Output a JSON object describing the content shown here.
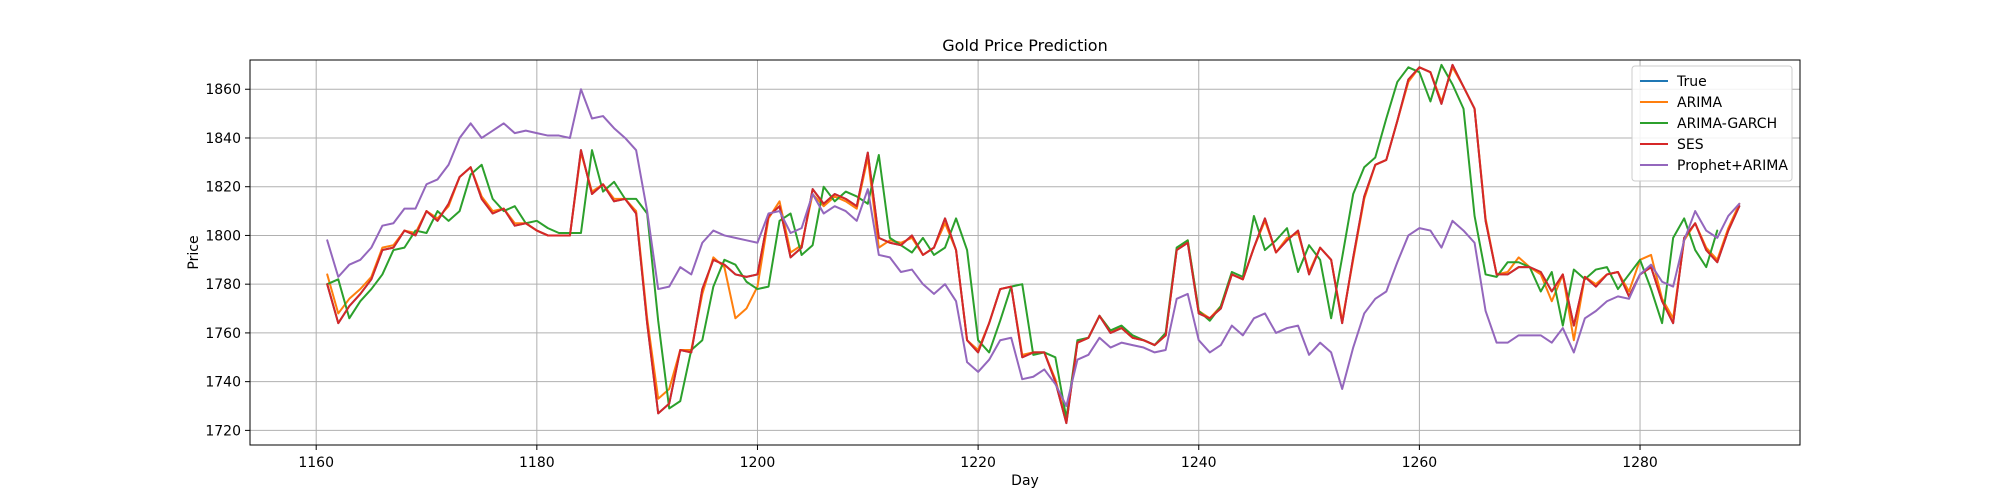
{
  "chart_data": {
    "type": "line",
    "title": "Gold Price Prediction",
    "xlabel": "Day",
    "ylabel": "Price",
    "xlim": [
      1154,
      1294.5
    ],
    "ylim": [
      1714,
      1872
    ],
    "x_ticks": [
      1160,
      1180,
      1200,
      1220,
      1240,
      1260,
      1280
    ],
    "y_ticks": [
      1720,
      1740,
      1760,
      1780,
      1800,
      1820,
      1840,
      1860
    ],
    "grid": true,
    "legend_position": "top-right",
    "x_start": 1161,
    "series": [
      {
        "name": "True",
        "color": "#1f77b4",
        "values": [
          1780,
          1764,
          1771,
          1776,
          1782,
          1794,
          1795,
          1802,
          1800,
          1810,
          1806,
          1813,
          1824,
          1828,
          1815,
          1809,
          1811,
          1804,
          1805,
          1802,
          1800,
          1800,
          1800,
          1835,
          1817,
          1821,
          1814,
          1815,
          1809,
          1764,
          1727,
          1731,
          1753,
          1752,
          1778,
          1790,
          1788,
          1784,
          1783,
          1784,
          1808,
          1812,
          1791,
          1795,
          1819,
          1813,
          1817,
          1815,
          1812,
          1834,
          1799,
          1797,
          1796,
          1800,
          1792,
          1795,
          1807,
          1794,
          1757,
          1752,
          1764,
          1778,
          1779,
          1750,
          1752,
          1752,
          1740,
          1723,
          1756,
          1758,
          1767,
          1760,
          1762,
          1758,
          1757,
          1755,
          1759,
          1794,
          1797,
          1768,
          1766,
          1770,
          1784,
          1782,
          1795,
          1807,
          1793,
          1798,
          1802,
          1784,
          1795,
          1790,
          1764,
          1791,
          1816,
          1829,
          1831,
          1847,
          1864,
          1869,
          1867,
          1854,
          1870,
          1861,
          1852,
          1806,
          1784,
          1784,
          1787,
          1787,
          1785,
          1777,
          1784,
          1763,
          1783,
          1779,
          1784,
          1785,
          1775,
          1784,
          1787,
          1773,
          1764,
          1799,
          1805,
          1794,
          1789,
          1802,
          1812
        ]
      },
      {
        "name": "ARIMA",
        "color": "#ff7f0e",
        "values": [
          1784,
          1768,
          1774,
          1778,
          1783,
          1795,
          1796,
          1802,
          1801,
          1810,
          1807,
          1812,
          1824,
          1828,
          1816,
          1810,
          1811,
          1805,
          1805,
          1802,
          1800,
          1800,
          1800,
          1834,
          1818,
          1821,
          1815,
          1815,
          1810,
          1766,
          1733,
          1737,
          1753,
          1753,
          1776,
          1791,
          1787,
          1766,
          1770,
          1779,
          1807,
          1814,
          1793,
          1796,
          1817,
          1812,
          1816,
          1814,
          1811,
          1832,
          1795,
          1798,
          1797,
          1799,
          1792,
          1795,
          1805,
          1794,
          1757,
          1753,
          1764,
          1778,
          1779,
          1751,
          1752,
          1752,
          1741,
          1724,
          1756,
          1758,
          1767,
          1761,
          1762,
          1758,
          1757,
          1755,
          1759,
          1794,
          1798,
          1769,
          1766,
          1771,
          1784,
          1782,
          1795,
          1806,
          1793,
          1799,
          1801,
          1785,
          1795,
          1790,
          1765,
          1790,
          1815,
          1829,
          1831,
          1847,
          1863,
          1869,
          1867,
          1855,
          1869,
          1861,
          1852,
          1807,
          1784,
          1785,
          1791,
          1787,
          1784,
          1773,
          1784,
          1757,
          1783,
          1780,
          1784,
          1785,
          1777,
          1790,
          1792,
          1774,
          1766,
          1798,
          1805,
          1795,
          1790,
          1803,
          1813
        ]
      },
      {
        "name": "ARIMA-GARCH",
        "color": "#2ca02c",
        "values": [
          1780,
          1782,
          1766,
          1773,
          1778,
          1784,
          1794,
          1795,
          1802,
          1801,
          1810,
          1806,
          1810,
          1825,
          1829,
          1815,
          1810,
          1812,
          1805,
          1806,
          1803,
          1801,
          1801,
          1801,
          1835,
          1818,
          1822,
          1815,
          1815,
          1809,
          1765,
          1729,
          1732,
          1753,
          1757,
          1779,
          1790,
          1788,
          1781,
          1778,
          1779,
          1806,
          1809,
          1792,
          1796,
          1820,
          1814,
          1818,
          1816,
          1813,
          1833,
          1799,
          1796,
          1793,
          1799,
          1792,
          1795,
          1807,
          1794,
          1757,
          1752,
          1765,
          1779,
          1780,
          1751,
          1752,
          1750,
          1725,
          1757,
          1758,
          1767,
          1761,
          1763,
          1759,
          1757,
          1755,
          1760,
          1795,
          1798,
          1769,
          1765,
          1771,
          1785,
          1783,
          1808,
          1794,
          1798,
          1803,
          1785,
          1796,
          1790,
          1766,
          1791,
          1817,
          1828,
          1832,
          1848,
          1863,
          1869,
          1867,
          1855,
          1870,
          1862,
          1852,
          1808,
          1784,
          1783,
          1789,
          1789,
          1787,
          1777,
          1785,
          1763,
          1786,
          1782,
          1786,
          1787,
          1778,
          1784,
          1790,
          1778,
          1764,
          1799,
          1807,
          1794,
          1787,
          1802
        ]
      },
      {
        "name": "SES",
        "color": "#d62728",
        "values": [
          1780,
          1764,
          1771,
          1776,
          1782,
          1794,
          1795,
          1802,
          1800,
          1810,
          1806,
          1813,
          1824,
          1828,
          1815,
          1809,
          1811,
          1804,
          1805,
          1802,
          1800,
          1800,
          1800,
          1835,
          1817,
          1821,
          1814,
          1815,
          1809,
          1764,
          1727,
          1731,
          1753,
          1752,
          1778,
          1790,
          1788,
          1784,
          1783,
          1784,
          1808,
          1812,
          1791,
          1795,
          1819,
          1813,
          1817,
          1815,
          1812,
          1834,
          1799,
          1797,
          1796,
          1800,
          1792,
          1795,
          1807,
          1794,
          1757,
          1752,
          1764,
          1778,
          1779,
          1750,
          1752,
          1752,
          1740,
          1723,
          1756,
          1758,
          1767,
          1760,
          1762,
          1758,
          1757,
          1755,
          1759,
          1794,
          1797,
          1768,
          1766,
          1770,
          1784,
          1782,
          1795,
          1807,
          1793,
          1798,
          1802,
          1784,
          1795,
          1790,
          1764,
          1791,
          1816,
          1829,
          1831,
          1847,
          1864,
          1869,
          1867,
          1854,
          1870,
          1861,
          1852,
          1806,
          1784,
          1784,
          1787,
          1787,
          1785,
          1777,
          1784,
          1763,
          1783,
          1779,
          1784,
          1785,
          1775,
          1784,
          1787,
          1773,
          1764,
          1799,
          1805,
          1794,
          1789,
          1802,
          1812
        ]
      },
      {
        "name": "Prophet+ARIMA",
        "color": "#9467bd",
        "values": [
          1798,
          1783,
          1788,
          1790,
          1795,
          1804,
          1805,
          1811,
          1811,
          1821,
          1823,
          1829,
          1840,
          1846,
          1840,
          1843,
          1846,
          1842,
          1843,
          1842,
          1841,
          1841,
          1840,
          1860,
          1848,
          1849,
          1844,
          1840,
          1835,
          1810,
          1778,
          1779,
          1787,
          1784,
          1797,
          1802,
          1800,
          1799,
          1798,
          1797,
          1809,
          1810,
          1801,
          1803,
          1817,
          1809,
          1812,
          1810,
          1806,
          1819,
          1792,
          1791,
          1785,
          1786,
          1780,
          1776,
          1780,
          1773,
          1748,
          1744,
          1749,
          1757,
          1758,
          1741,
          1742,
          1745,
          1739,
          1730,
          1749,
          1751,
          1758,
          1754,
          1756,
          1755,
          1754,
          1752,
          1753,
          1774,
          1776,
          1757,
          1752,
          1755,
          1763,
          1759,
          1766,
          1768,
          1760,
          1762,
          1763,
          1751,
          1756,
          1752,
          1737,
          1754,
          1768,
          1774,
          1777,
          1789,
          1800,
          1803,
          1802,
          1795,
          1806,
          1802,
          1797,
          1769,
          1756,
          1756,
          1759,
          1759,
          1759,
          1756,
          1762,
          1752,
          1766,
          1769,
          1773,
          1775,
          1774,
          1784,
          1788,
          1781,
          1779,
          1798,
          1810,
          1802,
          1799,
          1808,
          1813
        ]
      }
    ]
  }
}
